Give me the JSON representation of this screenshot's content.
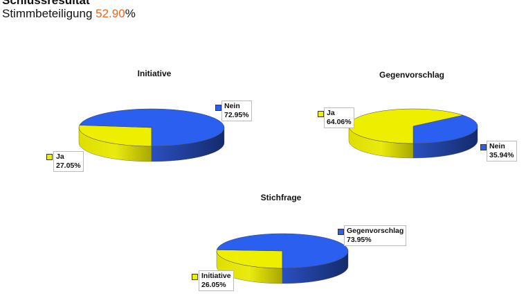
{
  "header": {
    "title": "Schlussresultat",
    "turnout_label": "Stimmbeteiligung",
    "turnout_value": "52.90",
    "turnout_unit": "%"
  },
  "colors": {
    "yes": "#eeee00",
    "no": "#2b5ff0",
    "accent": "#e06a20"
  },
  "chart_data": [
    {
      "type": "pie",
      "title": "Initiative",
      "slices": [
        {
          "label": "Ja",
          "value": 27.05,
          "display": "27.05%"
        },
        {
          "label": "Nein",
          "value": 72.95,
          "display": "72.95%"
        }
      ]
    },
    {
      "type": "pie",
      "title": "Gegenvorschlag",
      "slices": [
        {
          "label": "Ja",
          "value": 64.06,
          "display": "64.06%"
        },
        {
          "label": "Nein",
          "value": 35.94,
          "display": "35.94%"
        }
      ]
    },
    {
      "type": "pie",
      "title": "Stichfrage",
      "slices": [
        {
          "label": "Initiative",
          "value": 26.05,
          "display": "26.05%"
        },
        {
          "label": "Gegenvorschlag",
          "value": 73.95,
          "display": "73.95%"
        }
      ]
    }
  ]
}
